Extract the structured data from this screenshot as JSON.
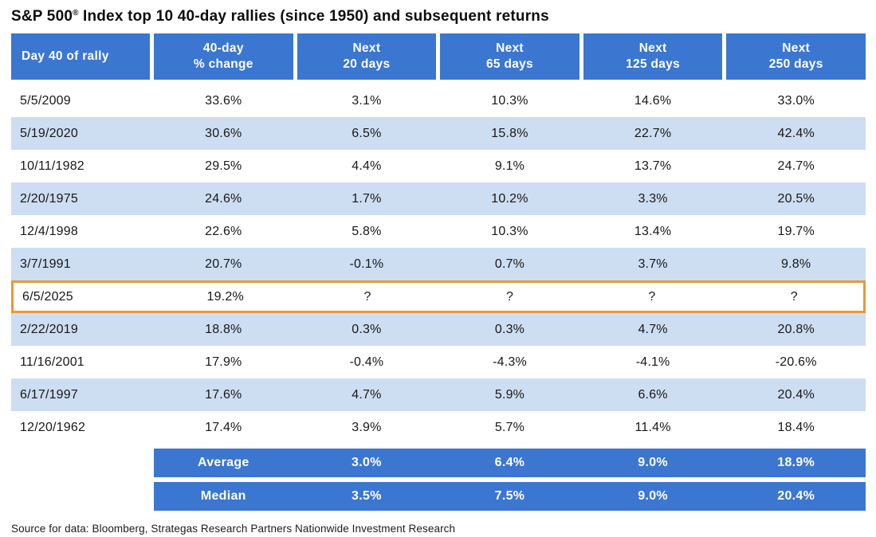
{
  "title": {
    "pre": "S&P 500",
    "reg": "®",
    "post": " Index top 10 40-day rallies (since 1950) and subsequent returns"
  },
  "table": {
    "columns": [
      {
        "l1": "Day 40 of rally",
        "l2": ""
      },
      {
        "l1": "40-day",
        "l2": "% change"
      },
      {
        "l1": "Next",
        "l2": "20 days"
      },
      {
        "l1": "Next",
        "l2": "65 days"
      },
      {
        "l1": "Next",
        "l2": "125 days"
      },
      {
        "l1": "Next",
        "l2": "250 days"
      }
    ],
    "rows": [
      {
        "date": "5/5/2009",
        "change": "33.6%",
        "next20": "3.1%",
        "next65": "10.3%",
        "next125": "14.6%",
        "next250": "33.0%",
        "highlight": false
      },
      {
        "date": "5/19/2020",
        "change": "30.6%",
        "next20": "6.5%",
        "next65": "15.8%",
        "next125": "22.7%",
        "next250": "42.4%",
        "highlight": false
      },
      {
        "date": "10/11/1982",
        "change": "29.5%",
        "next20": "4.4%",
        "next65": "9.1%",
        "next125": "13.7%",
        "next250": "24.7%",
        "highlight": false
      },
      {
        "date": "2/20/1975",
        "change": "24.6%",
        "next20": "1.7%",
        "next65": "10.2%",
        "next125": "3.3%",
        "next250": "20.5%",
        "highlight": false
      },
      {
        "date": "12/4/1998",
        "change": "22.6%",
        "next20": "5.8%",
        "next65": "10.3%",
        "next125": "13.4%",
        "next250": "19.7%",
        "highlight": false
      },
      {
        "date": "3/7/1991",
        "change": "20.7%",
        "next20": "-0.1%",
        "next65": "0.7%",
        "next125": "3.7%",
        "next250": "9.8%",
        "highlight": false
      },
      {
        "date": "6/5/2025",
        "change": "19.2%",
        "next20": "?",
        "next65": "?",
        "next125": "?",
        "next250": "?",
        "highlight": true
      },
      {
        "date": "2/22/2019",
        "change": "18.8%",
        "next20": "0.3%",
        "next65": "0.3%",
        "next125": "4.7%",
        "next250": "20.8%",
        "highlight": false
      },
      {
        "date": "11/16/2001",
        "change": "17.9%",
        "next20": "-0.4%",
        "next65": "-4.3%",
        "next125": "-4.1%",
        "next250": "-20.6%",
        "highlight": false
      },
      {
        "date": "6/17/1997",
        "change": "17.6%",
        "next20": "4.7%",
        "next65": "5.9%",
        "next125": "6.6%",
        "next250": "20.4%",
        "highlight": false
      },
      {
        "date": "12/20/1962",
        "change": "17.4%",
        "next20": "3.9%",
        "next65": "5.7%",
        "next125": "11.4%",
        "next250": "18.4%",
        "highlight": false
      }
    ],
    "summary": [
      {
        "label": "Average",
        "next20": "3.0%",
        "next65": "6.4%",
        "next125": "9.0%",
        "next250": "18.9%"
      },
      {
        "label": "Median",
        "next20": "3.5%",
        "next65": "7.5%",
        "next125": "9.0%",
        "next250": "20.4%"
      }
    ]
  },
  "source": "Source for data: Bloomberg, Strategas Research Partners Nationwide Investment Research",
  "colors": {
    "header_blue": "#3b76d1",
    "row_stripe": "#cdddf2",
    "highlight_orange": "#e9983a",
    "text": "#181818"
  },
  "chart_data": {
    "type": "table",
    "title": "S&P 500® Index top 10 40-day rallies (since 1950) and subsequent returns",
    "columns": [
      "Day 40 of rally",
      "40-day % change",
      "Next 20 days",
      "Next 65 days",
      "Next 125 days",
      "Next 250 days"
    ],
    "rows": [
      [
        "5/5/2009",
        33.6,
        3.1,
        10.3,
        14.6,
        33.0
      ],
      [
        "5/19/2020",
        30.6,
        6.5,
        15.8,
        22.7,
        42.4
      ],
      [
        "10/11/1982",
        29.5,
        4.4,
        9.1,
        13.7,
        24.7
      ],
      [
        "2/20/1975",
        24.6,
        1.7,
        10.2,
        3.3,
        20.5
      ],
      [
        "12/4/1998",
        22.6,
        5.8,
        10.3,
        13.4,
        19.7
      ],
      [
        "3/7/1991",
        20.7,
        -0.1,
        0.7,
        3.7,
        9.8
      ],
      [
        "6/5/2025",
        19.2,
        null,
        null,
        null,
        null
      ],
      [
        "2/22/2019",
        18.8,
        0.3,
        0.3,
        4.7,
        20.8
      ],
      [
        "11/16/2001",
        17.9,
        -0.4,
        -4.3,
        -4.1,
        -20.6
      ],
      [
        "6/17/1997",
        17.6,
        4.7,
        5.9,
        6.6,
        20.4
      ],
      [
        "12/20/1962",
        17.4,
        3.9,
        5.7,
        11.4,
        18.4
      ]
    ],
    "summary": {
      "Average": [
        3.0,
        6.4,
        9.0,
        18.9
      ],
      "Median": [
        3.5,
        7.5,
        9.0,
        20.4
      ]
    },
    "highlighted_row": "6/5/2025",
    "units": "percent",
    "source": "Source for data: Bloomberg, Strategas Research Partners Nationwide Investment Research"
  }
}
